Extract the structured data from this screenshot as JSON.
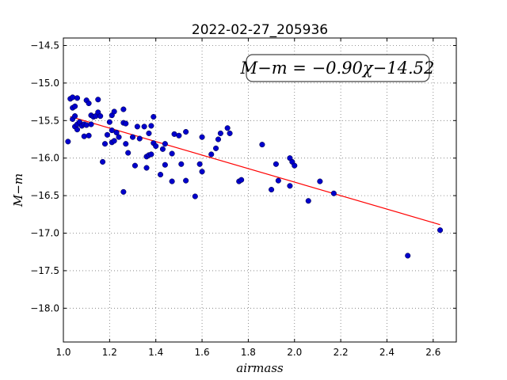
{
  "chart_data": {
    "type": "scatter",
    "title": "2022-02-27_205936",
    "xlabel": "airmass",
    "ylabel": "M−m",
    "xlim": [
      1.0,
      2.7
    ],
    "ylim": [
      -18.45,
      -14.4
    ],
    "x_ticks": [
      1.0,
      1.2,
      1.4,
      1.6,
      1.8,
      2.0,
      2.2,
      2.4,
      2.6
    ],
    "x_tick_labels": [
      "1.0",
      "1.2",
      "1.4",
      "1.6",
      "1.8",
      "2.0",
      "2.2",
      "2.4",
      "2.6"
    ],
    "y_ticks": [
      -14.5,
      -15.0,
      -15.5,
      -16.0,
      -16.5,
      -17.0,
      -17.5,
      -18.0
    ],
    "y_tick_labels": [
      "−14.5",
      "−15.0",
      "−15.5",
      "−16.0",
      "−16.5",
      "−17.0",
      "−17.5",
      "−18.0"
    ],
    "grid": true,
    "annotation": "M−m = −0.90χ−14.52",
    "colors": {
      "points": "#0000cc",
      "fit_line": "#ff0000"
    },
    "fit": {
      "slope": -0.9,
      "intercept": -14.52,
      "x_range": [
        1.03,
        2.63
      ]
    },
    "points": [
      [
        1.02,
        -15.78
      ],
      [
        1.03,
        -15.21
      ],
      [
        1.04,
        -15.19
      ],
      [
        1.04,
        -15.33
      ],
      [
        1.04,
        -15.48
      ],
      [
        1.05,
        -15.31
      ],
      [
        1.05,
        -15.44
      ],
      [
        1.05,
        -15.58
      ],
      [
        1.06,
        -15.2
      ],
      [
        1.06,
        -15.55
      ],
      [
        1.06,
        -15.62
      ],
      [
        1.07,
        -15.52
      ],
      [
        1.08,
        -15.57
      ],
      [
        1.09,
        -15.55
      ],
      [
        1.09,
        -15.71
      ],
      [
        1.1,
        -15.23
      ],
      [
        1.1,
        -15.56
      ],
      [
        1.11,
        -15.27
      ],
      [
        1.11,
        -15.7
      ],
      [
        1.12,
        -15.43
      ],
      [
        1.12,
        -15.55
      ],
      [
        1.13,
        -15.45
      ],
      [
        1.14,
        -15.44
      ],
      [
        1.15,
        -15.22
      ],
      [
        1.15,
        -15.39
      ],
      [
        1.16,
        -15.44
      ],
      [
        1.17,
        -16.05
      ],
      [
        1.18,
        -15.81
      ],
      [
        1.19,
        -15.69
      ],
      [
        1.2,
        -15.52
      ],
      [
        1.21,
        -15.43
      ],
      [
        1.21,
        -15.63
      ],
      [
        1.21,
        -15.79
      ],
      [
        1.22,
        -15.38
      ],
      [
        1.22,
        -15.77
      ],
      [
        1.23,
        -15.66
      ],
      [
        1.24,
        -15.72
      ],
      [
        1.26,
        -15.35
      ],
      [
        1.26,
        -15.53
      ],
      [
        1.26,
        -16.45
      ],
      [
        1.27,
        -15.54
      ],
      [
        1.27,
        -15.81
      ],
      [
        1.28,
        -15.93
      ],
      [
        1.3,
        -15.72
      ],
      [
        1.31,
        -16.1
      ],
      [
        1.32,
        -15.58
      ],
      [
        1.33,
        -15.74
      ],
      [
        1.35,
        -15.58
      ],
      [
        1.36,
        -16.13
      ],
      [
        1.36,
        -15.98
      ],
      [
        1.37,
        -15.67
      ],
      [
        1.37,
        -15.96
      ],
      [
        1.38,
        -15.57
      ],
      [
        1.38,
        -15.95
      ],
      [
        1.39,
        -15.45
      ],
      [
        1.39,
        -15.8
      ],
      [
        1.4,
        -15.84
      ],
      [
        1.42,
        -16.22
      ],
      [
        1.43,
        -15.88
      ],
      [
        1.44,
        -15.81
      ],
      [
        1.44,
        -16.09
      ],
      [
        1.47,
        -15.94
      ],
      [
        1.47,
        -16.31
      ],
      [
        1.48,
        -15.68
      ],
      [
        1.5,
        -15.7
      ],
      [
        1.51,
        -16.08
      ],
      [
        1.53,
        -15.65
      ],
      [
        1.53,
        -16.3
      ],
      [
        1.57,
        -16.51
      ],
      [
        1.59,
        -16.08
      ],
      [
        1.6,
        -15.72
      ],
      [
        1.6,
        -16.18
      ],
      [
        1.64,
        -15.95
      ],
      [
        1.66,
        -15.87
      ],
      [
        1.67,
        -15.75
      ],
      [
        1.68,
        -15.67
      ],
      [
        1.71,
        -15.6
      ],
      [
        1.72,
        -15.67
      ],
      [
        1.76,
        -16.31
      ],
      [
        1.77,
        -16.29
      ],
      [
        1.86,
        -15.82
      ],
      [
        1.9,
        -16.42
      ],
      [
        1.92,
        -16.08
      ],
      [
        1.93,
        -16.3
      ],
      [
        1.98,
        -16.0
      ],
      [
        1.98,
        -16.37
      ],
      [
        1.99,
        -16.05
      ],
      [
        2.0,
        -16.1
      ],
      [
        2.06,
        -16.57
      ],
      [
        2.11,
        -16.31
      ],
      [
        2.17,
        -16.47
      ],
      [
        2.49,
        -17.3
      ],
      [
        2.63,
        -16.96
      ]
    ]
  }
}
